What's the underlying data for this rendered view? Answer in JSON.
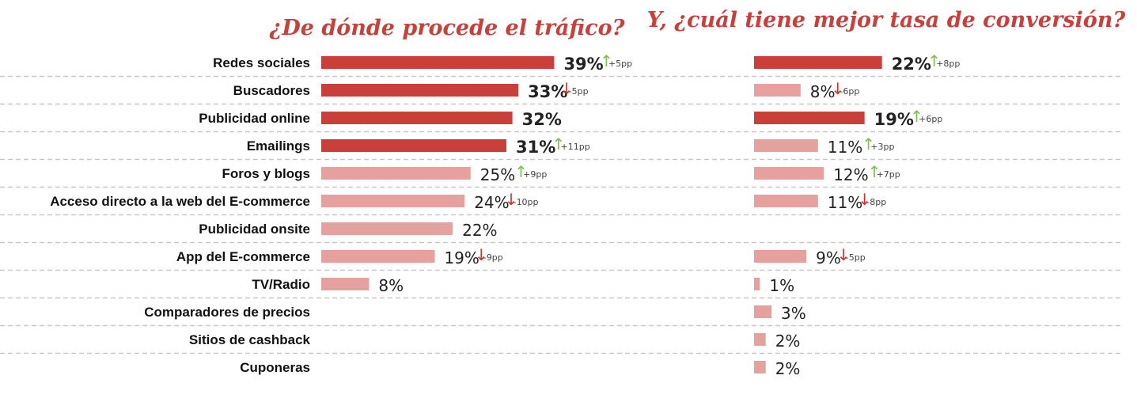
{
  "chart_data": {
    "type": "bar",
    "orientation": "horizontal",
    "categories": [
      "Redes sociales",
      "Buscadores",
      "Publicidad online",
      "Emailings",
      "Foros y blogs",
      "Acceso directo a la web del E-commerce",
      "Publicidad onsite",
      "App del E-commerce",
      "TV/Radio",
      "Comparadores de precios",
      "Sitios de cashback",
      "Cuponeras"
    ],
    "series": [
      {
        "title": "¿De dónde procede el tráfico?",
        "values": [
          39,
          33,
          32,
          31,
          25,
          24,
          22,
          19,
          8,
          null,
          null,
          null
        ],
        "labels": [
          "39%",
          "33%",
          "32%",
          "31%",
          "25%",
          "24%",
          "22%",
          "19%",
          "8%",
          "",
          "",
          ""
        ],
        "changes": [
          "+5pp",
          "-5pp",
          "",
          "+11pp",
          "+9pp",
          "-10pp",
          "",
          "-9pp",
          "",
          "",
          "",
          ""
        ],
        "highlight_count": 4
      },
      {
        "title": "Y, ¿cuál tiene mejor tasa de conversión?",
        "values": [
          22,
          8,
          19,
          11,
          12,
          11,
          null,
          9,
          1,
          3,
          2,
          2
        ],
        "labels": [
          "22%",
          "8%",
          "19%",
          "11%",
          "12%",
          "11%",
          "",
          "9%",
          "1%",
          "3%",
          "2%",
          "2%"
        ],
        "changes": [
          "+8pp",
          "-6pp",
          "+6pp",
          "+3pp",
          "+7pp",
          "-8pp",
          "",
          "-5pp",
          "",
          "",
          "",
          ""
        ],
        "highlight": [
          true,
          false,
          true,
          false,
          false,
          false,
          false,
          false,
          false,
          false,
          false,
          false
        ]
      }
    ],
    "colors": {
      "dark": "#c9403a",
      "light": "#e4a19d",
      "title": "#c9403a",
      "up": "#7cbf4a",
      "down": "#d4302b",
      "grid": "#c8c8c8"
    },
    "grid": "dashed separators between rows"
  }
}
